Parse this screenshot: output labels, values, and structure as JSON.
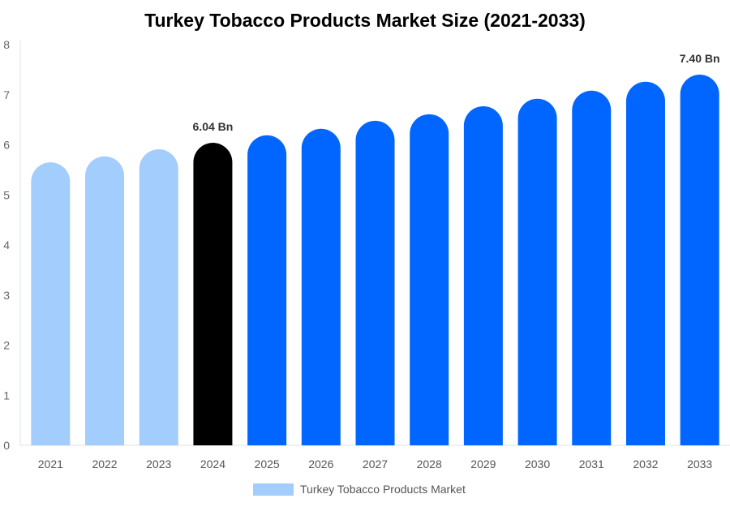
{
  "chart_data": {
    "type": "bar",
    "title": "Turkey Tobacco Products Market Size (2021-2033)",
    "categories": [
      "2021",
      "2022",
      "2023",
      "2024",
      "2025",
      "2026",
      "2027",
      "2028",
      "2029",
      "2030",
      "2031",
      "2032",
      "2033"
    ],
    "series": [
      {
        "name": "Turkey Tobacco Products Market",
        "values": [
          5.65,
          5.77,
          5.91,
          6.04,
          6.19,
          6.32,
          6.48,
          6.61,
          6.77,
          6.92,
          7.08,
          7.26,
          7.4
        ]
      }
    ],
    "bar_colors": [
      "#a3cdfd",
      "#a3cdfd",
      "#a3cdfd",
      "#000000",
      "#0066ff",
      "#0066ff",
      "#0066ff",
      "#0066ff",
      "#0066ff",
      "#0066ff",
      "#0066ff",
      "#0066ff",
      "#0066ff"
    ],
    "data_labels": {
      "3": "6.04 Bn",
      "12": "7.40 Bn"
    },
    "ylim": [
      0,
      8
    ],
    "yticks": [
      "0",
      "1",
      "2",
      "3",
      "4",
      "5",
      "6",
      "7",
      "8"
    ],
    "grid": false,
    "legend": {
      "position": "bottom",
      "color": "#a3cdfd"
    },
    "xlabel": "",
    "ylabel": ""
  }
}
